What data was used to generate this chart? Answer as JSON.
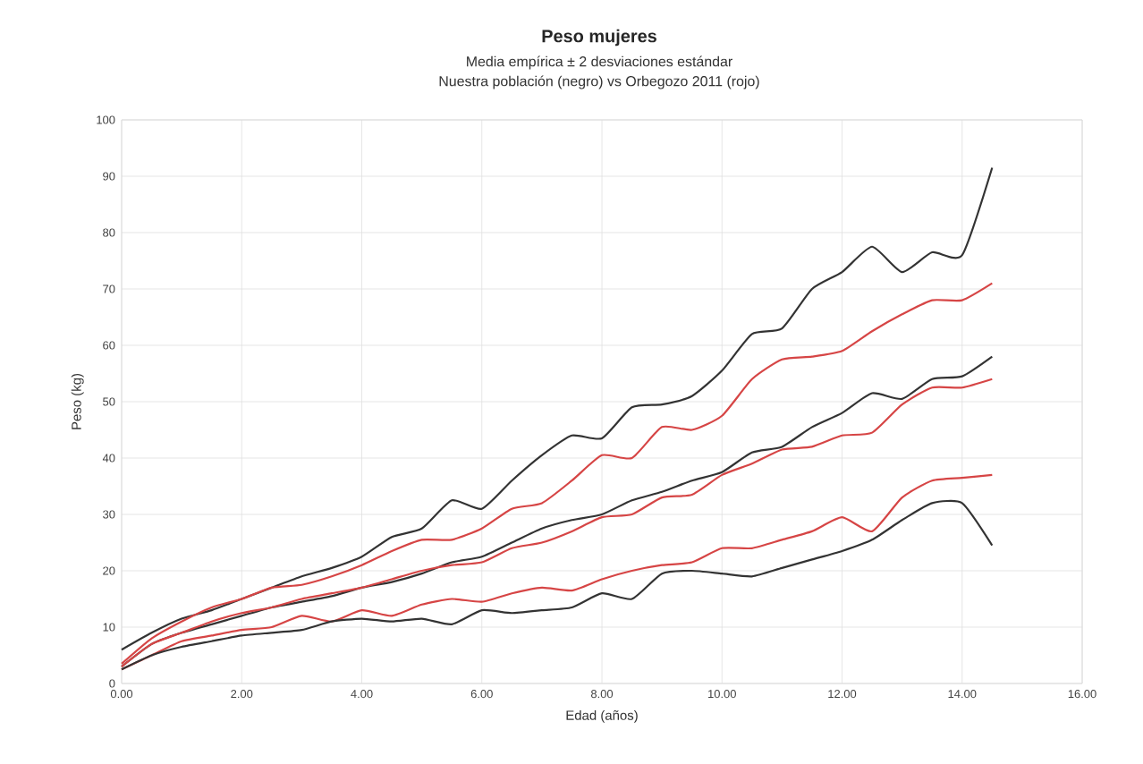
{
  "chart_data": {
    "type": "line",
    "title": "Peso mujeres",
    "subtitle": "Media empírica ± 2 desviaciones estándar",
    "annotations": [
      "Nuestra población (negro) vs Orbegozo 2011 (rojo)"
    ],
    "xlabel": "Edad (años)",
    "ylabel": "Peso (kg)",
    "x": [
      0,
      0.5,
      1,
      1.5,
      2,
      2.5,
      3,
      3.5,
      4,
      4.5,
      5,
      5.5,
      6,
      6.5,
      7,
      7.5,
      8,
      8.5,
      9,
      9.5,
      10,
      10.5,
      11,
      11.5,
      12,
      12.5,
      13,
      13.5,
      14,
      14.5
    ],
    "series": [
      {
        "color": "#333333",
        "values": [
          6,
          9,
          11.5,
          13,
          15,
          17,
          19,
          20.5,
          22.5,
          26,
          27.5,
          32.5,
          31,
          36,
          40.5,
          44,
          43.5,
          49,
          49.5,
          51,
          55.5,
          62,
          63,
          70,
          73,
          77.5,
          73,
          76.5,
          76,
          91.5
        ]
      },
      {
        "color": "#d64545",
        "values": [
          3.5,
          8,
          11,
          13.5,
          15,
          17,
          17.5,
          19,
          21,
          23.5,
          25.5,
          25.5,
          27.5,
          31,
          32,
          36,
          40.5,
          40,
          45.5,
          45,
          47.5,
          54,
          57.5,
          58,
          59,
          62.5,
          65.5,
          68,
          68,
          71
        ]
      },
      {
        "color": "#333333",
        "values": [
          3,
          7,
          9,
          10.5,
          12,
          13.5,
          14.5,
          15.5,
          17,
          18,
          19.5,
          21.5,
          22.5,
          25,
          27.5,
          29,
          30,
          32.5,
          34,
          36,
          37.5,
          41,
          42,
          45.5,
          48,
          51.5,
          50.5,
          54,
          54.5,
          58
        ]
      },
      {
        "color": "#d64545",
        "values": [
          3,
          7,
          9,
          11,
          12.5,
          13.5,
          15,
          16,
          17,
          18.5,
          20,
          21,
          21.5,
          24,
          25,
          27,
          29.5,
          30,
          33,
          33.5,
          37,
          39,
          41.5,
          42,
          44,
          44.5,
          49.5,
          52.5,
          52.5,
          54
        ]
      },
      {
        "color": "#d64545",
        "values": [
          2.5,
          5,
          7.5,
          8.5,
          9.5,
          10,
          12,
          11,
          13,
          12,
          14,
          15,
          14.5,
          16,
          17,
          16.5,
          18.5,
          20,
          21,
          21.5,
          24,
          24,
          25.5,
          27,
          29.5,
          27,
          33,
          36,
          36.5,
          37
        ]
      },
      {
        "color": "#333333",
        "values": [
          2.5,
          5,
          6.5,
          7.5,
          8.5,
          9,
          9.5,
          11,
          11.5,
          11,
          11.5,
          10.5,
          13,
          12.5,
          13,
          13.5,
          16,
          15,
          19.5,
          20,
          19.5,
          19,
          20.5,
          22,
          23.5,
          25.5,
          29,
          32,
          32,
          24.5
        ]
      }
    ],
    "xlim": [
      0,
      16
    ],
    "ylim": [
      0,
      100
    ],
    "xticks": [
      {
        "value": 0,
        "label": "0.00"
      },
      {
        "value": 2,
        "label": "2.00"
      },
      {
        "value": 4,
        "label": "4.00"
      },
      {
        "value": 6,
        "label": "6.00"
      },
      {
        "value": 8,
        "label": "8.00"
      },
      {
        "value": 10,
        "label": "10.00"
      },
      {
        "value": 12,
        "label": "12.00"
      },
      {
        "value": 14,
        "label": "14.00"
      },
      {
        "value": 16,
        "label": "16.00"
      }
    ],
    "yticks": [
      0,
      10,
      20,
      30,
      40,
      50,
      60,
      70,
      80,
      90,
      100
    ],
    "grid": true
  }
}
